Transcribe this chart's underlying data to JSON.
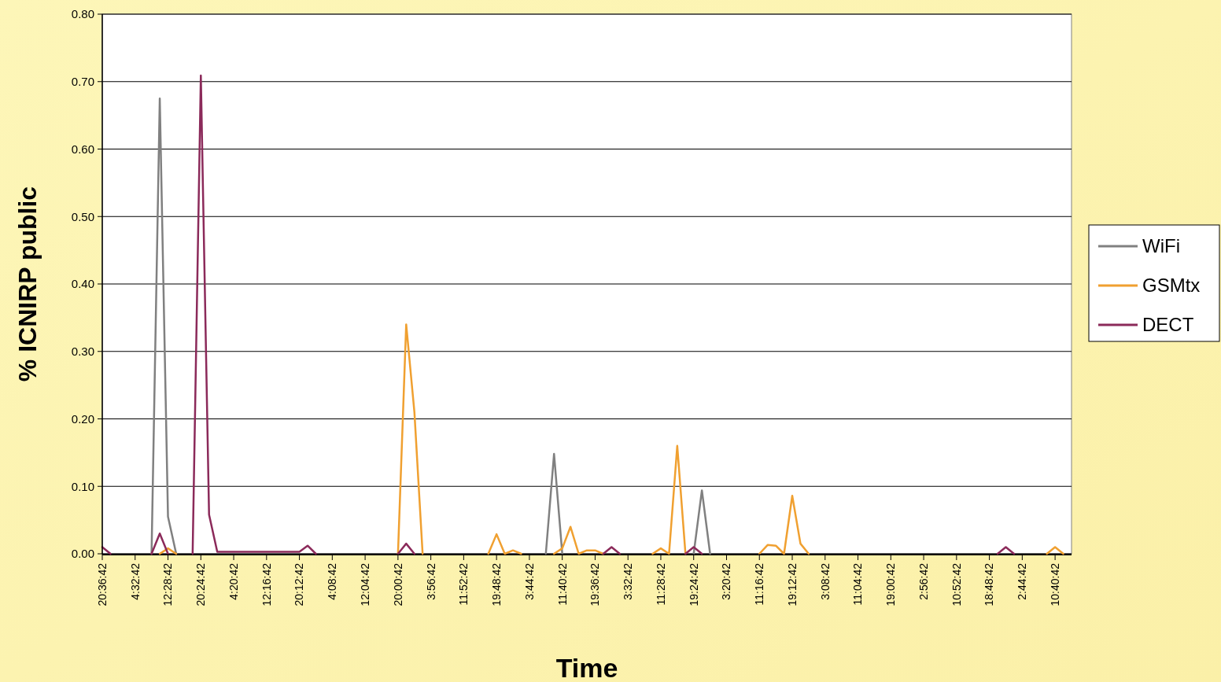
{
  "chart_data": {
    "type": "line",
    "xlabel": "Time",
    "ylabel": "% ICNIRP public",
    "categories": [
      "20:36:42",
      null,
      null,
      null,
      "4:32:42",
      null,
      null,
      null,
      "12:28:42",
      null,
      null,
      null,
      "20:24:42",
      null,
      null,
      null,
      "4:20:42",
      null,
      null,
      null,
      "12:16:42",
      null,
      null,
      null,
      "20:12:42",
      null,
      null,
      null,
      "4:08:42",
      null,
      null,
      null,
      "12:04:42",
      null,
      null,
      null,
      "20:00:42",
      null,
      null,
      null,
      "3:56:42",
      null,
      null,
      null,
      "11:52:42",
      null,
      null,
      null,
      "19:48:42",
      null,
      null,
      null,
      "3:44:42",
      null,
      null,
      null,
      "11:40:42",
      null,
      null,
      null,
      "19:36:42",
      null,
      null,
      null,
      "3:32:42",
      null,
      null,
      null,
      "11:28:42",
      null,
      null,
      null,
      "19:24:42",
      null,
      null,
      null,
      "3:20:42",
      null,
      null,
      null,
      "11:16:42",
      null,
      null,
      null,
      "19:12:42",
      null,
      null,
      null,
      "3:08:42",
      null,
      null,
      null,
      "11:04:42",
      null,
      null,
      null,
      "19:00:42",
      null,
      null,
      null,
      "2:56:42",
      null,
      null,
      null,
      "10:52:42",
      null,
      null,
      null,
      "18:48:42",
      null,
      null,
      null,
      "2:44:42",
      null,
      null,
      null,
      "10:40:42",
      null,
      null
    ],
    "ylim": [
      0,
      0.8
    ],
    "yticks": [
      {
        "value": 0,
        "label": "0.00"
      },
      {
        "value": 0.1,
        "label": "0.10"
      },
      {
        "value": 0.2,
        "label": "0.20"
      },
      {
        "value": 0.3,
        "label": "0.30"
      },
      {
        "value": 0.4,
        "label": "0.40"
      },
      {
        "value": 0.5,
        "label": "0.50"
      },
      {
        "value": 0.6,
        "label": "0.60"
      },
      {
        "value": 0.7,
        "label": "0.70"
      },
      {
        "value": 0.8,
        "label": "0.80"
      }
    ],
    "grid": "y",
    "legend": "right",
    "marker": "none",
    "line_style": "solid",
    "series": [
      {
        "name": "WiFi",
        "color": "#808080",
        "values": [
          null,
          null,
          null,
          null,
          null,
          null,
          0,
          0.675,
          0.055,
          0,
          null,
          null,
          null,
          null,
          null,
          null,
          null,
          null,
          null,
          null,
          null,
          null,
          null,
          null,
          null,
          null,
          null,
          null,
          null,
          null,
          null,
          null,
          null,
          null,
          null,
          null,
          null,
          null,
          null,
          null,
          null,
          null,
          null,
          null,
          null,
          null,
          null,
          null,
          null,
          null,
          null,
          null,
          null,
          null,
          0,
          0.148,
          0,
          null,
          null,
          null,
          null,
          null,
          null,
          null,
          null,
          null,
          null,
          null,
          null,
          null,
          null,
          null,
          0,
          0.094,
          0,
          null,
          null,
          null,
          null,
          null,
          null,
          null,
          null,
          null,
          null,
          null,
          null,
          null,
          null,
          null,
          null,
          null,
          null,
          null,
          null,
          null,
          null,
          null,
          null,
          null,
          null,
          null,
          null,
          null,
          null,
          null,
          null,
          null,
          null,
          null,
          null,
          null,
          null,
          null,
          null,
          null,
          null,
          null,
          null
        ]
      },
      {
        "name": "GSMtx",
        "color": "#f0a030",
        "values": [
          null,
          null,
          null,
          null,
          null,
          null,
          null,
          0,
          0.008,
          0,
          null,
          null,
          null,
          null,
          null,
          null,
          null,
          null,
          null,
          null,
          null,
          null,
          null,
          null,
          null,
          null,
          null,
          null,
          null,
          null,
          null,
          null,
          null,
          null,
          null,
          null,
          0,
          0.34,
          0.21,
          0,
          null,
          null,
          null,
          null,
          null,
          null,
          null,
          0,
          0.029,
          0,
          0.005,
          0,
          null,
          null,
          null,
          0,
          0.008,
          0.04,
          0,
          0.005,
          0.005,
          0,
          null,
          null,
          null,
          null,
          null,
          0,
          0.008,
          0,
          0.16,
          0,
          null,
          null,
          null,
          null,
          null,
          null,
          null,
          null,
          0,
          0.013,
          0.012,
          0,
          0.086,
          0.015,
          0,
          null,
          null,
          null,
          null,
          null,
          null,
          null,
          null,
          null,
          null,
          null,
          null,
          null,
          null,
          null,
          null,
          null,
          null,
          null,
          null,
          null,
          null,
          null,
          null,
          null,
          null,
          null,
          null,
          0,
          0.01,
          0,
          null
        ]
      },
      {
        "name": "DECT",
        "color": "#8b2a5a",
        "values": [
          0.01,
          0,
          null,
          null,
          null,
          null,
          0,
          0.03,
          0,
          null,
          null,
          0,
          0.709,
          0.058,
          0.003,
          0.003,
          0.003,
          0.003,
          0.003,
          0.003,
          0.003,
          0.003,
          0.003,
          0.003,
          0.003,
          0.012,
          0,
          null,
          null,
          null,
          null,
          null,
          null,
          null,
          null,
          null,
          0,
          0.015,
          0,
          null,
          null,
          null,
          null,
          null,
          null,
          null,
          null,
          null,
          null,
          null,
          null,
          null,
          null,
          null,
          null,
          null,
          null,
          null,
          null,
          null,
          null,
          0,
          0.01,
          0,
          null,
          null,
          null,
          null,
          null,
          null,
          null,
          0,
          0.01,
          0,
          null,
          null,
          null,
          null,
          null,
          null,
          null,
          null,
          null,
          null,
          null,
          null,
          null,
          null,
          null,
          null,
          null,
          null,
          null,
          null,
          null,
          null,
          null,
          null,
          null,
          null,
          null,
          null,
          null,
          null,
          null,
          null,
          null,
          null,
          null,
          0,
          0.01,
          0,
          null,
          null,
          null,
          null,
          null,
          null,
          null
        ]
      }
    ]
  }
}
